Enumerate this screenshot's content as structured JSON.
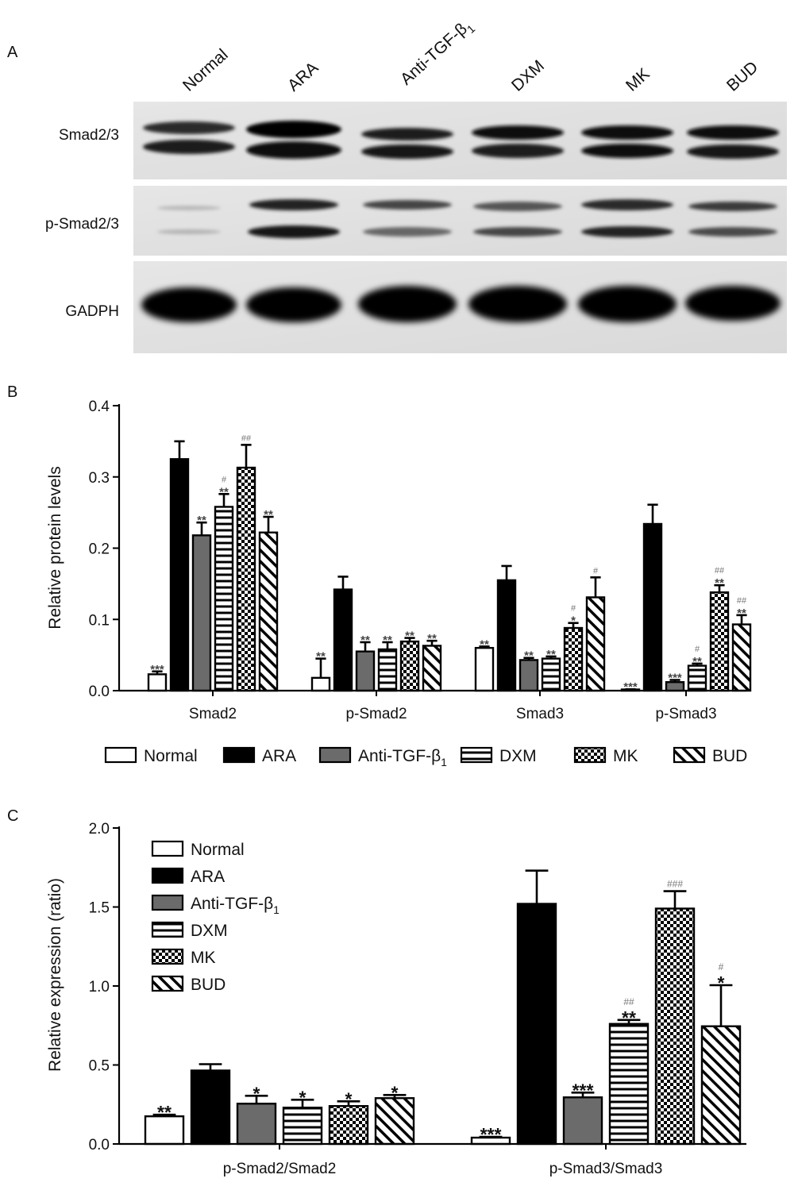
{
  "panelA": {
    "letter": "A",
    "lanes": [
      "Normal",
      "ARA",
      "Anti-TGF-β",
      "DXM",
      "MK",
      "BUD"
    ],
    "lane_subscript": {
      "index": 2,
      "text": "1"
    },
    "rows": [
      {
        "label": "Smad2/3"
      },
      {
        "label": "p-Smad2/3"
      },
      {
        "label": "GADPH"
      }
    ]
  },
  "legend": [
    {
      "label": "Normal",
      "pattern": "white"
    },
    {
      "label": "ARA",
      "pattern": "black"
    },
    {
      "label": "Anti-TGF-β",
      "sub": "1",
      "pattern": "gray"
    },
    {
      "label": "DXM",
      "pattern": "hlines"
    },
    {
      "label": "MK",
      "pattern": "check"
    },
    {
      "label": "BUD",
      "pattern": "diag"
    }
  ],
  "chart_data": [
    {
      "panel": "B",
      "type": "bar",
      "ylabel": "Relative protein levels",
      "ylim": [
        0,
        0.4
      ],
      "yticks": [
        "0.0",
        "0.1",
        "0.2",
        "0.3",
        "0.4"
      ],
      "categories": [
        "Smad2",
        "p-Smad2",
        "Smad3",
        "p-Smad3"
      ],
      "series": [
        {
          "name": "Normal",
          "values": [
            0.023,
            0.018,
            0.06,
            0.001
          ],
          "errors": [
            0.004,
            0.027,
            0.002,
            0.001
          ],
          "stars": [
            "***",
            "**",
            "**",
            "***"
          ],
          "hashes": [
            "",
            "",
            "",
            ""
          ]
        },
        {
          "name": "ARA",
          "values": [
            0.325,
            0.142,
            0.155,
            0.234
          ],
          "errors": [
            0.025,
            0.018,
            0.02,
            0.027
          ],
          "stars": [
            "",
            "",
            "",
            ""
          ],
          "hashes": [
            "",
            "",
            "",
            ""
          ]
        },
        {
          "name": "Anti-TGF-β1",
          "values": [
            0.218,
            0.055,
            0.043,
            0.012
          ],
          "errors": [
            0.018,
            0.013,
            0.003,
            0.003
          ],
          "stars": [
            "**",
            "**",
            "**",
            "***"
          ],
          "hashes": [
            "",
            "",
            "",
            ""
          ]
        },
        {
          "name": "DXM",
          "values": [
            0.258,
            0.058,
            0.045,
            0.035
          ],
          "errors": [
            0.018,
            0.01,
            0.003,
            0.003
          ],
          "stars": [
            "**",
            "**",
            "**",
            "**"
          ],
          "hashes": [
            "#",
            "",
            "",
            "#"
          ]
        },
        {
          "name": "MK",
          "values": [
            0.313,
            0.069,
            0.088,
            0.138
          ],
          "errors": [
            0.032,
            0.005,
            0.007,
            0.01
          ],
          "stars": [
            "",
            "**",
            "*",
            "**"
          ],
          "hashes": [
            "##",
            "",
            "#",
            "##"
          ]
        },
        {
          "name": "BUD",
          "values": [
            0.222,
            0.063,
            0.131,
            0.093
          ],
          "errors": [
            0.022,
            0.007,
            0.028,
            0.013
          ],
          "stars": [
            "**",
            "**",
            "",
            "**"
          ],
          "hashes": [
            "",
            "",
            "#",
            "##"
          ]
        }
      ]
    },
    {
      "panel": "C",
      "type": "bar",
      "ylabel": "Relative expression (ratio)",
      "ylim": [
        0,
        2.0
      ],
      "yticks": [
        "0.0",
        "0.5",
        "1.0",
        "1.5",
        "2.0"
      ],
      "categories": [
        "p-Smad2/Smad2",
        "p-Smad3/Smad3"
      ],
      "series": [
        {
          "name": "Normal",
          "values": [
            0.175,
            0.04
          ],
          "errors": [
            0.01,
            0.005
          ],
          "stars": [
            "**",
            "***"
          ],
          "hashes": [
            "",
            ""
          ]
        },
        {
          "name": "ARA",
          "values": [
            0.465,
            1.52
          ],
          "errors": [
            0.04,
            0.21
          ],
          "stars": [
            "",
            ""
          ],
          "hashes": [
            "",
            ""
          ]
        },
        {
          "name": "Anti-TGF-β1",
          "values": [
            0.255,
            0.295
          ],
          "errors": [
            0.05,
            0.03
          ],
          "stars": [
            "*",
            "***"
          ],
          "hashes": [
            "",
            ""
          ]
        },
        {
          "name": "DXM",
          "values": [
            0.23,
            0.76
          ],
          "errors": [
            0.05,
            0.025
          ],
          "stars": [
            "*",
            "**"
          ],
          "hashes": [
            "",
            "##"
          ]
        },
        {
          "name": "MK",
          "values": [
            0.24,
            1.49
          ],
          "errors": [
            0.03,
            0.11
          ],
          "stars": [
            "*",
            ""
          ],
          "hashes": [
            "",
            "###"
          ]
        },
        {
          "name": "BUD",
          "values": [
            0.29,
            0.745
          ],
          "errors": [
            0.02,
            0.26
          ],
          "stars": [
            "*",
            "*"
          ],
          "hashes": [
            "",
            "#"
          ]
        }
      ]
    }
  ]
}
